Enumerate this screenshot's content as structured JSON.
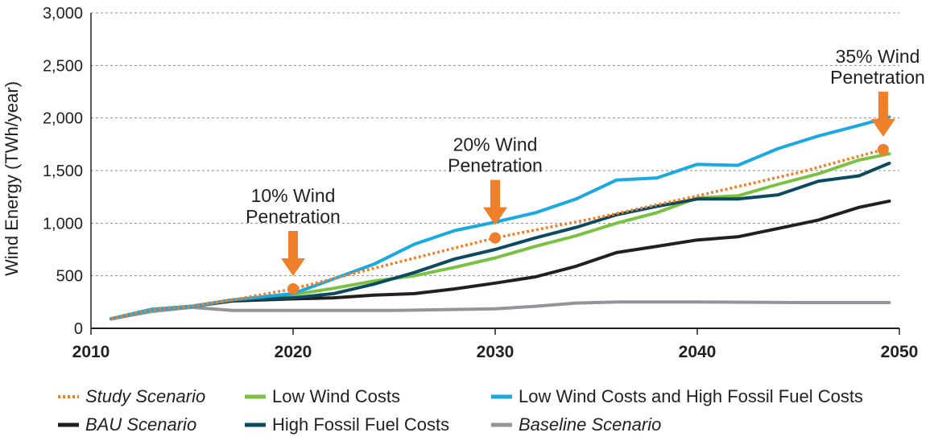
{
  "chart_data": {
    "type": "line",
    "title": "",
    "xlabel": "",
    "ylabel": "Wind Energy (TWh/year)",
    "xlim": [
      2010,
      2050
    ],
    "ylim": [
      0,
      3000
    ],
    "x_ticks": [
      "2010",
      "2020",
      "2030",
      "2040",
      "2050"
    ],
    "y_ticks": [
      "0",
      "500",
      "1,000",
      "1,500",
      "2,000",
      "2,500",
      "3,000"
    ],
    "grid": "horizontal dashed",
    "legend_placement": "bottom",
    "series": [
      {
        "name": "Study Scenario",
        "color": "#f07f29",
        "style": "dotted",
        "italic": true,
        "x": [
          2011,
          2013,
          2015,
          2017,
          2020,
          2025,
          2030,
          2035,
          2040,
          2045,
          2049.2
        ],
        "y": [
          90,
          180,
          210,
          270,
          375,
          620,
          860,
          1050,
          1260,
          1480,
          1700
        ]
      },
      {
        "name": "BAU Scenario",
        "color": "#231f20",
        "style": "solid",
        "italic": true,
        "x": [
          2011,
          2013,
          2015,
          2017,
          2020,
          2022,
          2024,
          2026,
          2028,
          2030,
          2032,
          2034,
          2036,
          2038,
          2040,
          2042,
          2044,
          2046,
          2048,
          2049.5
        ],
        "y": [
          90,
          180,
          210,
          260,
          280,
          290,
          315,
          330,
          375,
          430,
          490,
          590,
          720,
          780,
          840,
          870,
          950,
          1030,
          1150,
          1210
        ]
      },
      {
        "name": "Low Wind Costs",
        "color": "#7ac143",
        "style": "solid",
        "italic": false,
        "x": [
          2011,
          2013,
          2015,
          2017,
          2020,
          2022,
          2024,
          2026,
          2028,
          2030,
          2032,
          2034,
          2036,
          2038,
          2040,
          2042,
          2044,
          2046,
          2048,
          2049.5
        ],
        "y": [
          90,
          180,
          210,
          270,
          320,
          380,
          450,
          500,
          580,
          670,
          780,
          880,
          1000,
          1100,
          1240,
          1260,
          1370,
          1470,
          1600,
          1660
        ]
      },
      {
        "name": "High Fossil Fuel Costs",
        "color": "#0c4a60",
        "style": "solid",
        "italic": false,
        "x": [
          2011,
          2013,
          2015,
          2017,
          2020,
          2022,
          2024,
          2026,
          2028,
          2030,
          2032,
          2034,
          2036,
          2038,
          2040,
          2042,
          2044,
          2046,
          2048,
          2049.5
        ],
        "y": [
          90,
          180,
          210,
          270,
          290,
          330,
          420,
          530,
          660,
          750,
          860,
          960,
          1080,
          1160,
          1230,
          1230,
          1270,
          1400,
          1450,
          1570
        ]
      },
      {
        "name": "Low Wind Costs and High Fossil Fuel Costs",
        "color": "#1ba9e1",
        "style": "solid",
        "italic": false,
        "x": [
          2011,
          2013,
          2015,
          2017,
          2020,
          2022,
          2024,
          2026,
          2028,
          2030,
          2032,
          2034,
          2036,
          2038,
          2040,
          2042,
          2044,
          2046,
          2048,
          2049.5
        ],
        "y": [
          90,
          180,
          210,
          270,
          330,
          470,
          610,
          800,
          930,
          1010,
          1100,
          1230,
          1410,
          1430,
          1560,
          1550,
          1710,
          1830,
          1930,
          2010
        ]
      },
      {
        "name": "Baseline Scenario",
        "color": "#939598",
        "style": "solid",
        "italic": true,
        "x": [
          2011,
          2013,
          2015,
          2017,
          2020,
          2025,
          2030,
          2032,
          2034,
          2036,
          2040,
          2045,
          2049.5
        ],
        "y": [
          90,
          160,
          200,
          170,
          170,
          170,
          185,
          210,
          240,
          250,
          250,
          245,
          245
        ]
      }
    ],
    "annotations": [
      {
        "line1": "10% Wind",
        "line2": "Penetration",
        "x": 2020,
        "y": 375,
        "color": "#f07f29"
      },
      {
        "line1": "20% Wind",
        "line2": "Penetration",
        "x": 2030,
        "y": 860,
        "color": "#f07f29"
      },
      {
        "line1": "35% Wind",
        "line2": "Penetration",
        "x": 2049.2,
        "y": 1700,
        "color": "#f07f29"
      }
    ],
    "legend": [
      {
        "label": "Study Scenario",
        "series": 0
      },
      {
        "label": "Low Wind Costs",
        "series": 2
      },
      {
        "label": "Low Wind Costs and High Fossil Fuel Costs",
        "series": 4
      },
      {
        "label": "BAU Scenario",
        "series": 1
      },
      {
        "label": "High Fossil Fuel Costs",
        "series": 3
      },
      {
        "label": "Baseline Scenario",
        "series": 5
      }
    ]
  }
}
